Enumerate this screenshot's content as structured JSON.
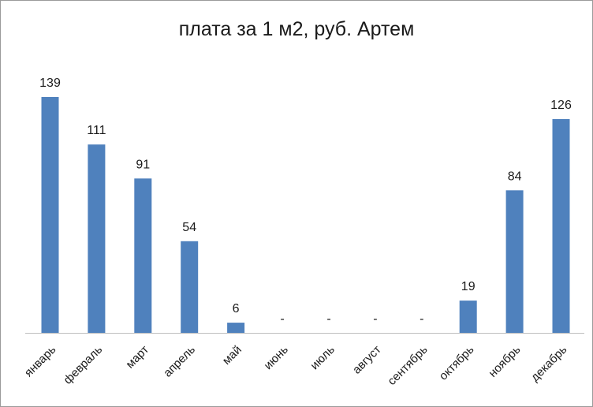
{
  "chart_data": {
    "type": "bar",
    "title": "плата за 1 м2, руб. Артем",
    "xlabel": "",
    "ylabel": "",
    "grid": false,
    "legend": "none",
    "ylim": [
      0,
      139
    ],
    "bar_color": "#4f81bd",
    "categories": [
      "январь",
      "февраль",
      "март",
      "апрель",
      "май",
      "июнь",
      "июль",
      "август",
      "сентябрь",
      "октябрь",
      "ноябрь",
      "декабрь"
    ],
    "values": [
      139,
      111,
      91,
      54,
      6,
      0,
      0,
      0,
      0,
      19,
      84,
      126
    ],
    "data_labels": [
      "139",
      "111",
      "91",
      "54",
      "6",
      "-",
      "-",
      "-",
      "-",
      "19",
      "84",
      "126"
    ]
  }
}
